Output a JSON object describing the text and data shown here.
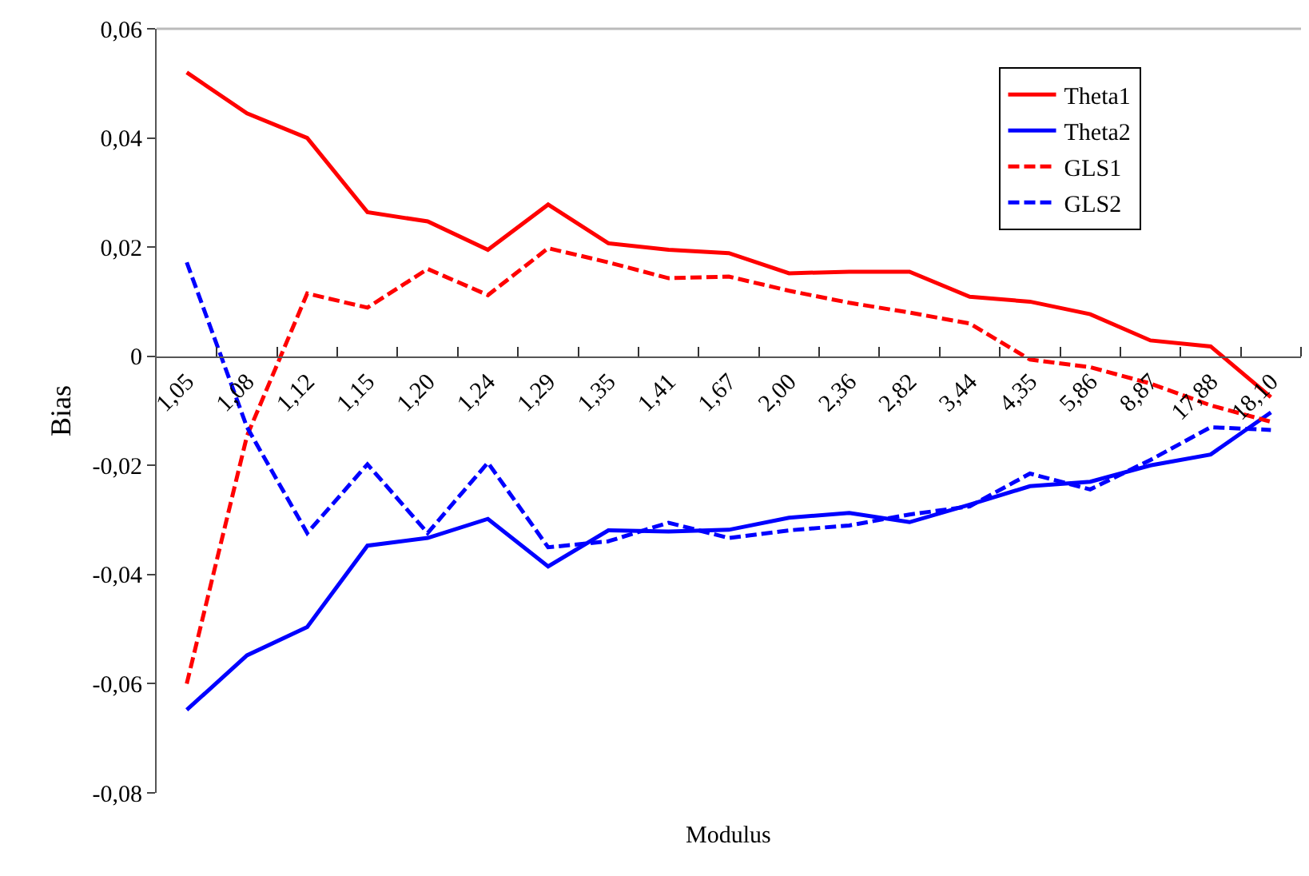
{
  "chart_data": {
    "type": "line",
    "xlabel": "Modulus",
    "ylabel": "Bias",
    "categories": [
      "1,05",
      "1,08",
      "1,12",
      "1,15",
      "1,20",
      "1,24",
      "1,29",
      "1,35",
      "1,41",
      "1,67",
      "2,00",
      "2,36",
      "2,82",
      "3,44",
      "4,35",
      "5,86",
      "8,87",
      "17,88",
      "18,10"
    ],
    "series": [
      {
        "name": "Theta1",
        "color": "#ff0000",
        "line_style": "solid",
        "values": [
          0.052,
          0.0445,
          0.04,
          0.0264,
          0.0247,
          0.0195,
          0.0278,
          0.0207,
          0.0195,
          0.0189,
          0.0152,
          0.0155,
          0.0155,
          0.0109,
          0.01,
          0.0077,
          0.0029,
          0.0018,
          -0.0075
        ]
      },
      {
        "name": "Theta2",
        "color": "#0000ff",
        "line_style": "solid",
        "values": [
          -0.0648,
          -0.0548,
          -0.0496,
          -0.0347,
          -0.0333,
          -0.0298,
          -0.0385,
          -0.0319,
          -0.0321,
          -0.0318,
          -0.0296,
          -0.0287,
          -0.0304,
          -0.0272,
          -0.0238,
          -0.023,
          -0.02,
          -0.018,
          -0.0103
        ]
      },
      {
        "name": "GLS1",
        "color": "#ff0000",
        "line_style": "dashed",
        "values": [
          -0.06,
          -0.0146,
          0.0115,
          0.0089,
          0.016,
          0.0112,
          0.0198,
          0.0172,
          0.0143,
          0.0146,
          0.012,
          0.0098,
          0.008,
          0.006,
          -0.0006,
          -0.002,
          -0.005,
          -0.009,
          -0.012
        ]
      },
      {
        "name": "GLS2",
        "color": "#0000ff",
        "line_style": "dashed",
        "values": [
          0.0172,
          -0.013,
          -0.0324,
          -0.0198,
          -0.0324,
          -0.0195,
          -0.035,
          -0.0339,
          -0.0305,
          -0.0333,
          -0.0319,
          -0.031,
          -0.029,
          -0.0275,
          -0.0215,
          -0.0244,
          -0.019,
          -0.013,
          -0.0135
        ]
      }
    ],
    "ylim": [
      -0.08,
      0.06
    ],
    "yticks": [
      {
        "value": -0.08,
        "label": "-0,08"
      },
      {
        "value": -0.06,
        "label": "-0,06"
      },
      {
        "value": -0.04,
        "label": "-0,04"
      },
      {
        "value": -0.02,
        "label": "-0,02"
      },
      0,
      {
        "value": 0.02,
        "label": "0,02"
      },
      {
        "value": 0.04,
        "label": "0,04"
      },
      {
        "value": 0.06,
        "label": "0,06"
      }
    ],
    "legend": "top right",
    "marker": "none"
  }
}
